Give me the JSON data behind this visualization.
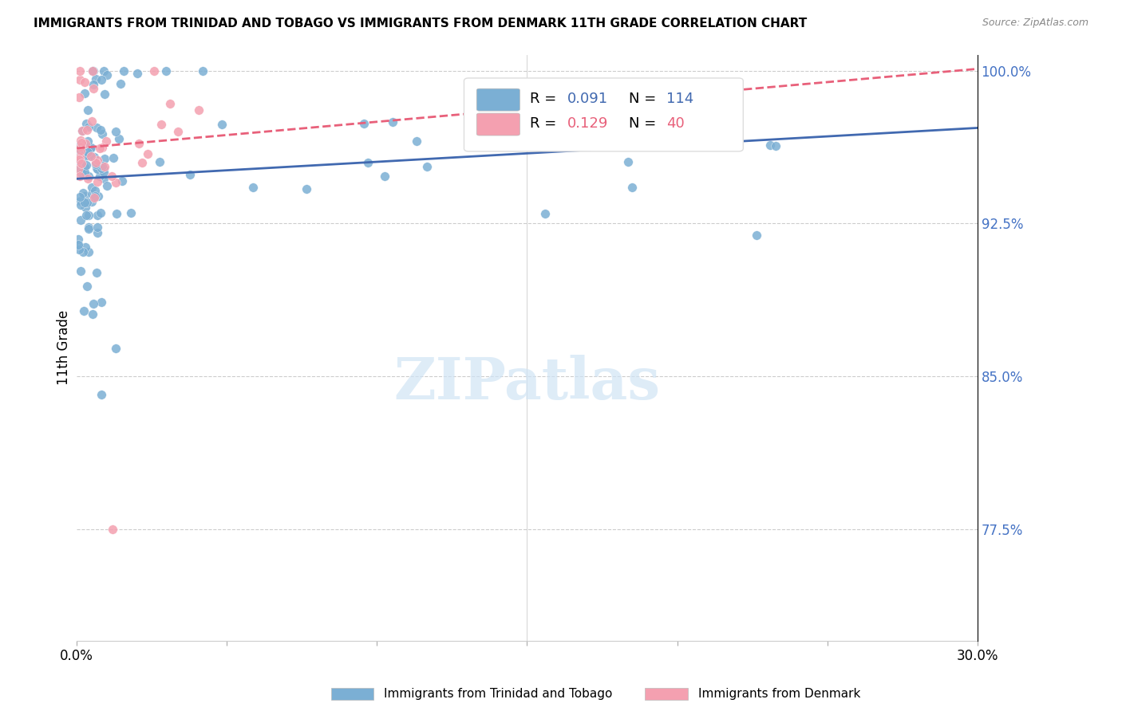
{
  "title": "IMMIGRANTS FROM TRINIDAD AND TOBAGO VS IMMIGRANTS FROM DENMARK 11TH GRADE CORRELATION CHART",
  "source": "Source: ZipAtlas.com",
  "ylabel": "11th Grade",
  "x_min": 0.0,
  "x_max": 0.3,
  "y_min": 0.72,
  "y_max": 1.008,
  "y_ticks_right": [
    1.0,
    0.925,
    0.85,
    0.775
  ],
  "y_tick_labels_right": [
    "100.0%",
    "92.5%",
    "85.0%",
    "77.5%"
  ],
  "blue_color": "#7BAFD4",
  "pink_color": "#F4A0B0",
  "blue_line_color": "#4169B0",
  "pink_line_color": "#E8607A",
  "blue_R": 0.091,
  "blue_N": 114,
  "pink_R": 0.129,
  "pink_N": 40,
  "blue_line_y0": 0.947,
  "blue_line_y1": 0.972,
  "pink_line_y0": 0.962,
  "pink_line_y1": 1.001,
  "watermark_color": "#D0E4F5",
  "axis_label_color": "#4472C4",
  "tick_color": "#AAAAAA"
}
